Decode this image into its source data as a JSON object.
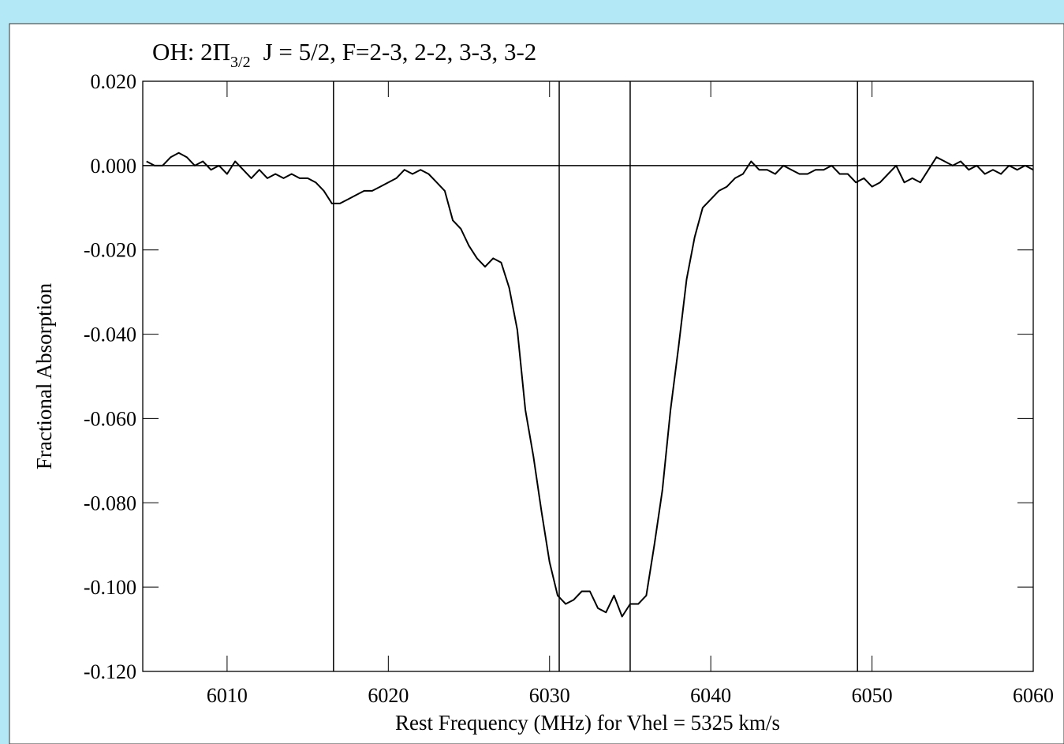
{
  "chart_data": {
    "type": "line",
    "title_parts": [
      "OH: 2Π",
      "3/2",
      "J = 5/2,   F=2-3, 2-2, 3-3, 3-2"
    ],
    "xlabel": "Rest Frequency (MHz) for Vhel = 5325 km/s",
    "ylabel": "Fractional Absorption",
    "xlim": [
      6004.77,
      6060
    ],
    "ylim": [
      -0.12,
      0.02
    ],
    "xticks": [
      6010,
      6020,
      6030,
      6040,
      6050,
      6060
    ],
    "yticks": [
      {
        "value": 0.02,
        "label": "0.020"
      },
      {
        "value": 0,
        "label": "0.000"
      },
      {
        "value": -0.02,
        "label": "-0.020"
      },
      {
        "value": -0.04,
        "label": "-0.040"
      },
      {
        "value": -0.06,
        "label": "-0.060"
      },
      {
        "value": -0.08,
        "label": "-0.080"
      },
      {
        "value": -0.1,
        "label": "-0.100"
      },
      {
        "value": -0.12,
        "label": "-0.120"
      }
    ],
    "vlines": [
      6016.6,
      6030.6,
      6035.0,
      6049.1
    ],
    "hline": 0,
    "color": "#000000",
    "x": [
      6005,
      6005.5,
      6006,
      6006.5,
      6007,
      6007.5,
      6008,
      6008.5,
      6009,
      6009.5,
      6010,
      6010.5,
      6011,
      6011.5,
      6012,
      6012.5,
      6013,
      6013.5,
      6014,
      6014.5,
      6015,
      6015.5,
      6016,
      6016.5,
      6017,
      6017.5,
      6018,
      6018.5,
      6019,
      6019.5,
      6020,
      6020.5,
      6021,
      6021.5,
      6022,
      6022.5,
      6023,
      6023.5,
      6024,
      6024.5,
      6025,
      6025.5,
      6026,
      6026.5,
      6027,
      6027.5,
      6028,
      6028.5,
      6029,
      6029.5,
      6030,
      6030.5,
      6031,
      6031.5,
      6032,
      6032.5,
      6033,
      6033.5,
      6034,
      6034.5,
      6035,
      6035.5,
      6036,
      6036.5,
      6037,
      6037.5,
      6038,
      6038.5,
      6039,
      6039.5,
      6040,
      6040.5,
      6041,
      6041.5,
      6042,
      6042.5,
      6043,
      6043.5,
      6044,
      6044.5,
      6045,
      6045.5,
      6046,
      6046.5,
      6047,
      6047.5,
      6048,
      6048.5,
      6049,
      6049.5,
      6050,
      6050.5,
      6051,
      6051.5,
      6052,
      6052.5,
      6053,
      6053.5,
      6054,
      6054.5,
      6055,
      6055.5,
      6056,
      6056.5,
      6057,
      6057.5,
      6058,
      6058.5,
      6059,
      6059.5,
      6060
    ],
    "values": [
      0.001,
      0,
      0,
      0.002,
      0.003,
      0.002,
      0,
      0.001,
      -0.001,
      0,
      -0.002,
      0.001,
      -0.001,
      -0.003,
      -0.001,
      -0.003,
      -0.002,
      -0.003,
      -0.002,
      -0.003,
      -0.003,
      -0.004,
      -0.006,
      -0.009,
      -0.009,
      -0.008,
      -0.007,
      -0.006,
      -0.006,
      -0.005,
      -0.004,
      -0.003,
      -0.001,
      -0.002,
      -0.001,
      -0.002,
      -0.004,
      -0.006,
      -0.013,
      -0.015,
      -0.019,
      -0.022,
      -0.024,
      -0.022,
      -0.023,
      -0.029,
      -0.039,
      -0.058,
      -0.069,
      -0.082,
      -0.094,
      -0.102,
      -0.104,
      -0.103,
      -0.101,
      -0.101,
      -0.105,
      -0.106,
      -0.102,
      -0.107,
      -0.104,
      -0.104,
      -0.102,
      -0.09,
      -0.077,
      -0.058,
      -0.043,
      -0.027,
      -0.017,
      -0.01,
      -0.008,
      -0.006,
      -0.005,
      -0.003,
      -0.002,
      0.001,
      -0.001,
      -0.001,
      -0.002,
      0,
      -0.001,
      -0.002,
      -0.002,
      -0.001,
      -0.001,
      0,
      -0.002,
      -0.002,
      -0.004,
      -0.003,
      -0.005,
      -0.004,
      -0.002,
      0,
      -0.004,
      -0.003,
      -0.004,
      -0.001,
      0.002,
      0.001,
      0,
      0.001,
      -0.001,
      0,
      -0.002,
      -0.001,
      -0.002,
      0,
      -0.001,
      0,
      -0.001
    ]
  }
}
